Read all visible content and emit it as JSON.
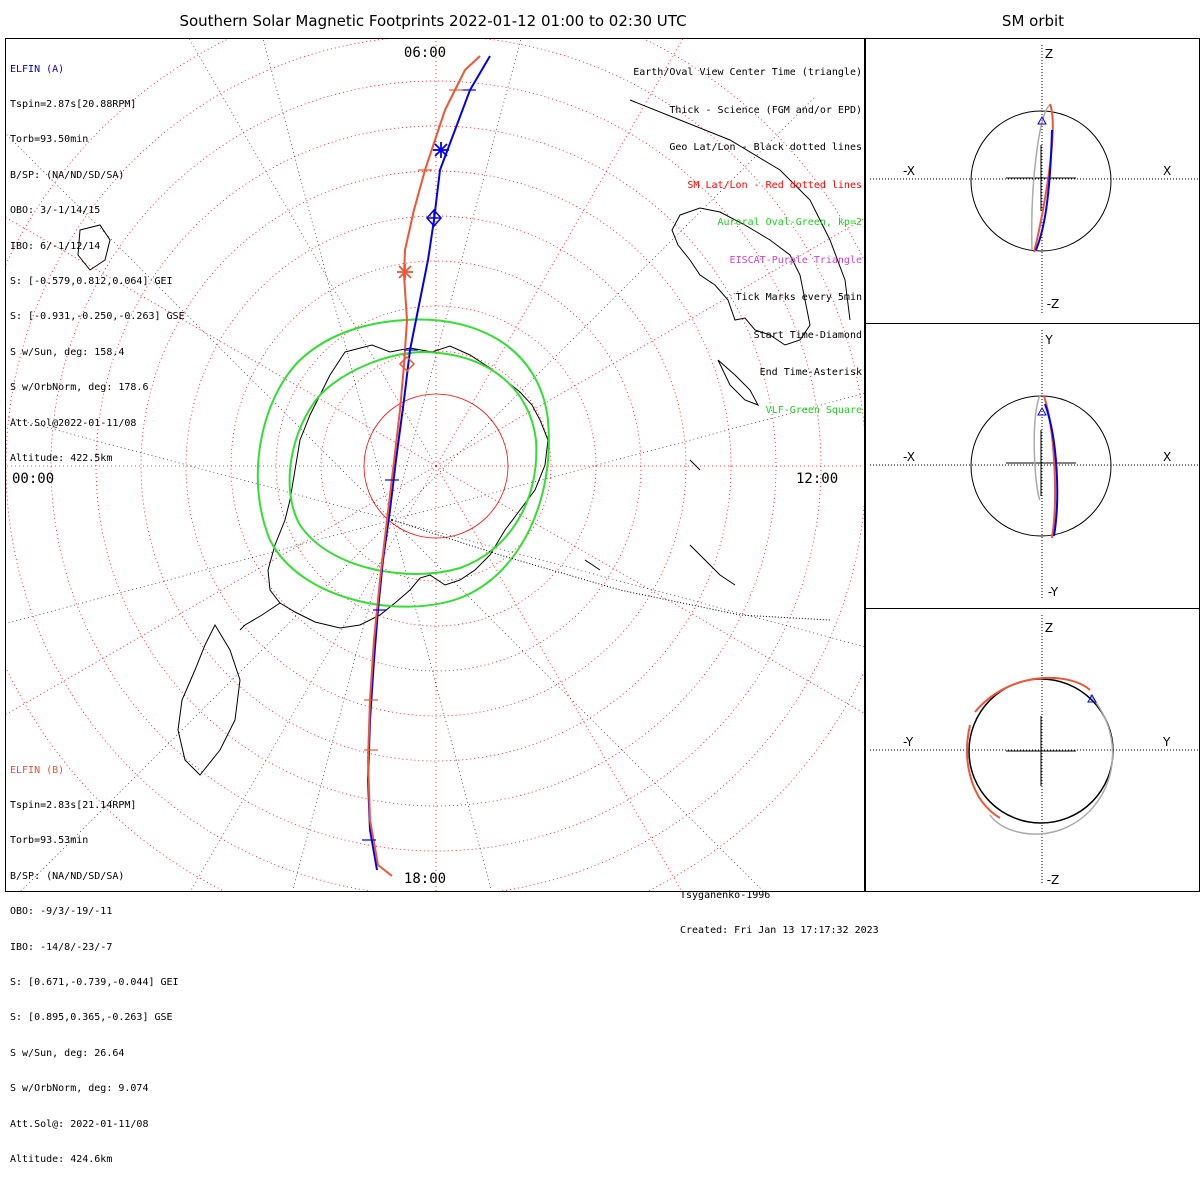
{
  "title": "Southern Solar Magnetic Footprints 2022-01-12 01:00 to 02:30 UTC",
  "sm_title": "SM orbit",
  "elfin_a": {
    "lines": [
      "ELFIN (A)",
      "Tspin=2.87s[20.88RPM]",
      "Torb=93.50min",
      "B/SP: (NA/ND/SD/SA)",
      "OBO: 3/-1/14/15",
      "IBO: 6/-1/12/14",
      "S: [-0.579,0.812,0.064] GEI",
      "S: [-0.931,-0.250,-0.263] GSE",
      "S w/Sun, deg: 158.4",
      "S w/OrbNorm, deg: 178.6",
      "Att.Sol@2022-01-11/08",
      "Altitude: 422.5km"
    ]
  },
  "elfin_b": {
    "lines": [
      "ELFIN (B)",
      "Tspin=2.83s[21.14RPM]",
      "Torb=93.53min",
      "B/SP: (NA/ND/SD/SA)",
      "OBO: -9/3/-19/-11",
      "IBO: -14/8/-23/-7",
      "S: [0.671,-0.739,-0.044] GEI",
      "S: [0.895,0.365,-0.263] GSE",
      "S w/Sun, deg: 26.64",
      "S w/OrbNorm, deg: 9.074",
      "Att.Sol@: 2022-01-11/08",
      "Altitude: 424.6km"
    ]
  },
  "legend": [
    {
      "text": "Earth/Oval View Center Time (triangle)",
      "color": "#000000"
    },
    {
      "text": "Thick - Science (FGM and/or EPD)",
      "color": "#000000"
    },
    {
      "text": "Geo Lat/Lon - Black dotted lines",
      "color": "#000000"
    },
    {
      "text": "SM Lat/Lon - Red dotted lines",
      "color": "#ff0000"
    },
    {
      "text": "Auroral Oval-Green, kp=2",
      "color": "#22cc22"
    },
    {
      "text": "EISCAT-Purple Triangle",
      "color": "#cc44cc"
    },
    {
      "text": "Tick Marks every 5min",
      "color": "#000000"
    },
    {
      "text": "Start Time-Diamond",
      "color": "#000000"
    },
    {
      "text": "End Time-Asterisk",
      "color": "#000000"
    },
    {
      "text": "VLF-Green Square",
      "color": "#22cc22"
    }
  ],
  "map_labels": {
    "top": "06:00",
    "bottom": "18:00",
    "left": "00:00",
    "right": "12:00"
  },
  "footer": {
    "model": "Tsyganenko-1996",
    "created": "Created: Fri Jan 13 17:17:32 2023"
  },
  "panels": [
    {
      "top": "Z",
      "bottom": "-Z",
      "left": "-X",
      "right": "X"
    },
    {
      "top": "Y",
      "bottom": "-Y",
      "left": "-X",
      "right": "X"
    },
    {
      "top": "Z",
      "bottom": "-Z",
      "left": "-Y",
      "right": "Y"
    }
  ],
  "colors": {
    "elfin_a": "#0000ee",
    "elfin_b": "#ee5533",
    "oval": "#33dd33",
    "sm_grid": "#ff0000",
    "geo_grid": "#000000"
  }
}
